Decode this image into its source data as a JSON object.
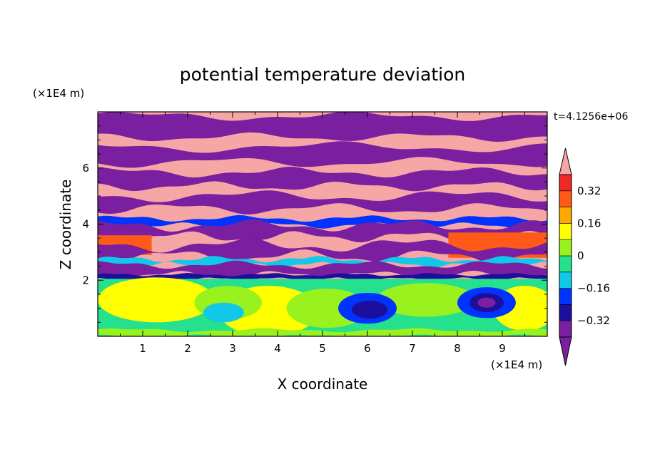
{
  "chart_data": {
    "type": "heatmap",
    "title": "potential temperature deviation",
    "xlabel": "X coordinate",
    "ylabel": "Z coordinate",
    "x_unit": "(×1E4 m)",
    "y_unit": "(×1E4 m)",
    "time_label": "t=4.1256e+06",
    "xlim": [
      0,
      10
    ],
    "ylim": [
      0,
      8
    ],
    "x_ticks": [
      "1",
      "2",
      "3",
      "4",
      "5",
      "6",
      "7",
      "8",
      "9"
    ],
    "y_ticks": [
      "2",
      "4",
      "6"
    ],
    "colorbar": {
      "levels": [
        -0.4,
        -0.32,
        -0.24,
        -0.16,
        -0.08,
        0,
        0.08,
        0.16,
        0.24,
        0.32,
        0.4
      ],
      "labels": [
        "0.32",
        "0.16",
        "0",
        "−0.16",
        "−0.32"
      ],
      "label_values": [
        0.32,
        0.16,
        0,
        -0.16,
        -0.32
      ],
      "colors": [
        "#7a1fa0",
        "#1c0f9c",
        "#0033ff",
        "#11c8e8",
        "#25e08c",
        "#99f21e",
        "#ffff00",
        "#ffa800",
        "#ff5a18",
        "#ef2828",
        "#f7a6a6"
      ],
      "over_color": "#f7a6a6",
      "under_color": "#7a1fa0",
      "extend": "both"
    },
    "layers": [
      {
        "z_range": [
          7.0,
          8.0
        ],
        "pattern": "alternating bands",
        "colors": [
          "pink",
          "purple"
        ]
      },
      {
        "z_range": [
          4.2,
          7.0
        ],
        "pattern": "alternating bands",
        "colors": [
          "pink",
          "purple"
        ]
      },
      {
        "z_range": [
          2.2,
          4.2
        ],
        "pattern": "mixed turbulent layer",
        "colors": [
          "pink",
          "purple",
          "red",
          "orange",
          "blue",
          "cyan"
        ]
      },
      {
        "z_range": [
          0,
          2.2
        ],
        "pattern": "lower layer with eddies",
        "colors": [
          "yellow",
          "green",
          "cyan",
          "blue"
        ]
      }
    ]
  }
}
